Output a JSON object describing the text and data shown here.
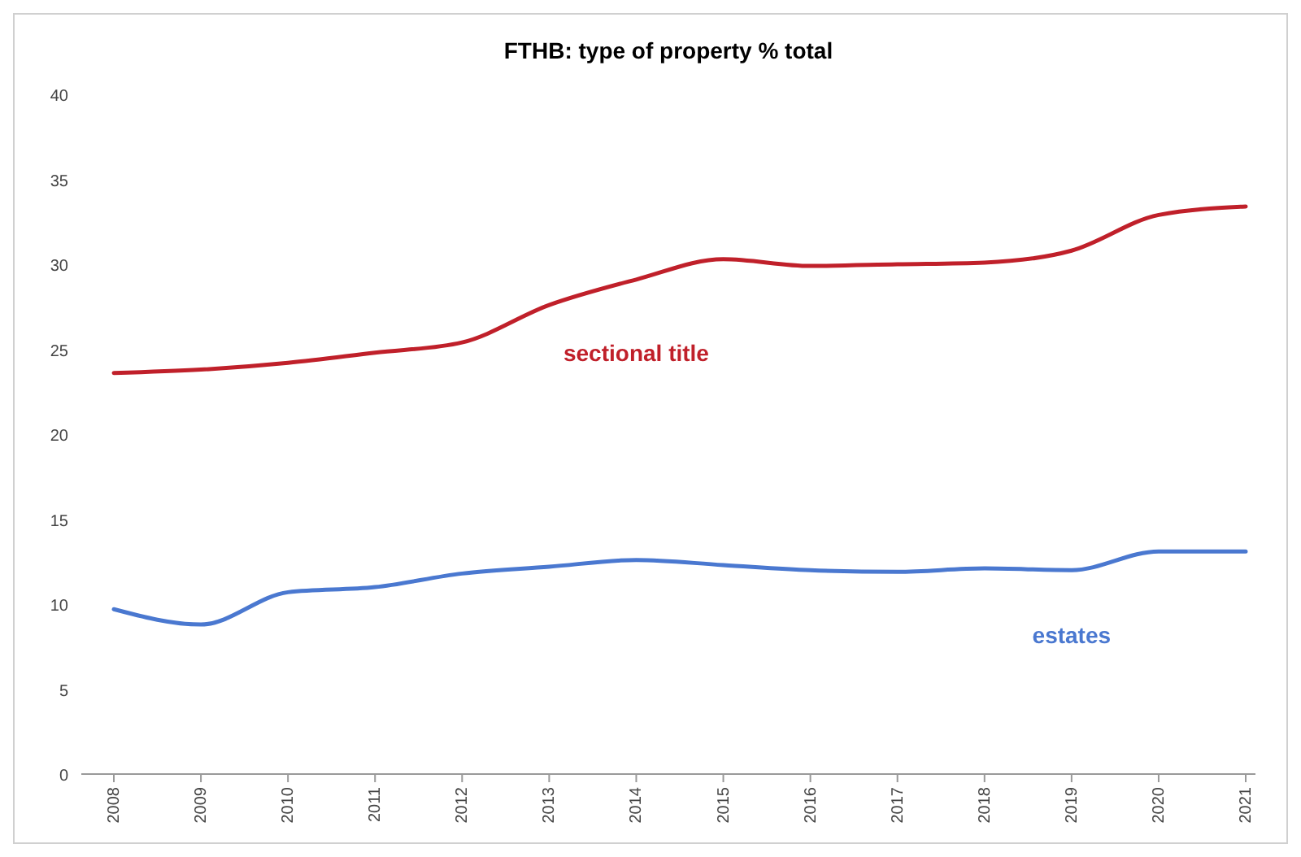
{
  "chart_data": {
    "type": "line",
    "title": "FTHB: type of property % total",
    "categories": [
      "2008",
      "2009",
      "2010",
      "2011",
      "2012",
      "2013",
      "2014",
      "2015",
      "2016",
      "2017",
      "2018",
      "2019",
      "2020",
      "2021"
    ],
    "series": [
      {
        "name": "sectional title",
        "color": "#c0202a",
        "values": [
          23.6,
          23.8,
          24.2,
          24.8,
          25.4,
          27.6,
          29.1,
          30.3,
          29.9,
          30.0,
          30.1,
          30.8,
          32.9,
          33.4
        ]
      },
      {
        "name": "estates",
        "color": "#4a78d0",
        "values": [
          9.7,
          8.8,
          10.7,
          11.0,
          11.8,
          12.2,
          12.6,
          12.3,
          12.0,
          11.9,
          12.1,
          12.0,
          13.1,
          13.1
        ]
      }
    ],
    "ylim": [
      0,
      40
    ],
    "yticks": [
      0,
      5,
      10,
      15,
      20,
      25,
      30,
      35,
      40
    ],
    "grid": false,
    "legend": false
  }
}
